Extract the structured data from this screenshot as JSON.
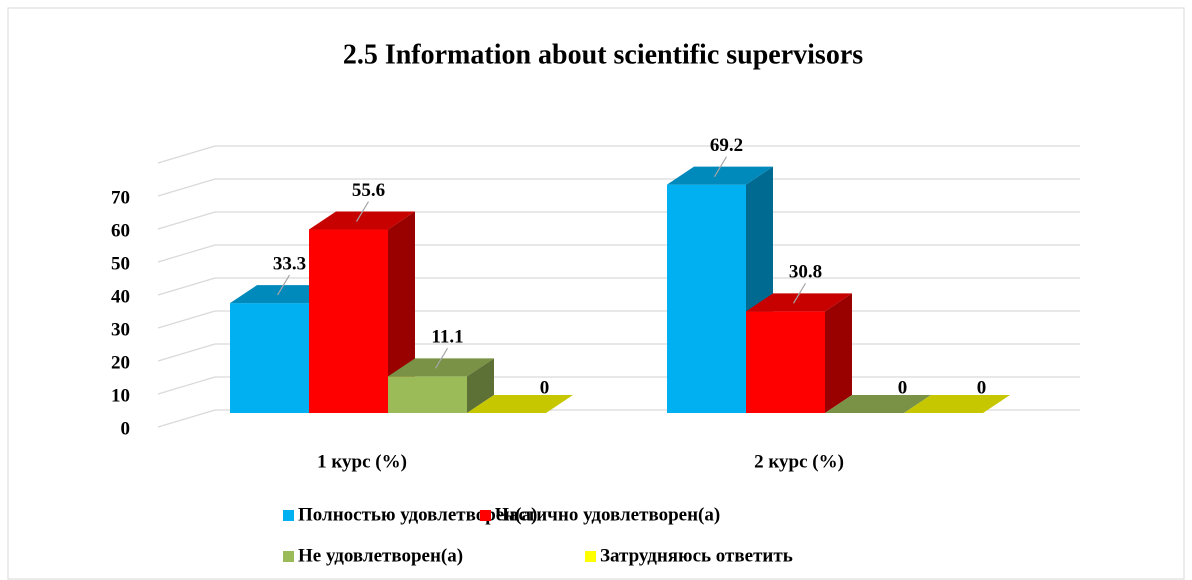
{
  "chart_data": {
    "type": "bar3d",
    "title": "2.5 Information about scientific supervisors",
    "categories": [
      "1 курс (%)",
      "2 курс (%)"
    ],
    "series": [
      {
        "name": "Полностью удовлетворен(а)",
        "color": "#00b0f0",
        "values": [
          33.3,
          69.2
        ]
      },
      {
        "name": "Частично удовлетворен(а)",
        "color": "#ff0000",
        "values": [
          55.6,
          30.8
        ]
      },
      {
        "name": "Не удовлетворен(а)",
        "color": "#9bbb59",
        "values": [
          11.1,
          0
        ]
      },
      {
        "name": "Затрудняюсь ответить",
        "color": "#ffff00",
        "values": [
          0,
          0
        ]
      }
    ],
    "ylim": [
      0,
      80
    ],
    "yticks": [
      0,
      10,
      20,
      30,
      40,
      50,
      60,
      70
    ],
    "grid": true,
    "legend": "bottom"
  }
}
